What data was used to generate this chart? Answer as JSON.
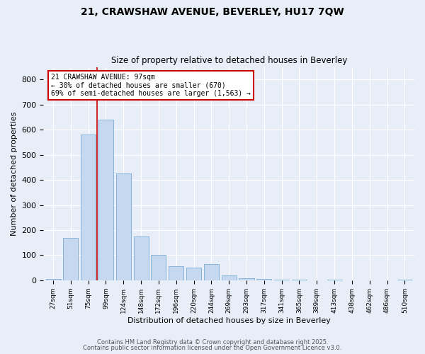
{
  "title1": "21, CRAWSHAW AVENUE, BEVERLEY, HU17 7QW",
  "title2": "Size of property relative to detached houses in Beverley",
  "xlabel": "Distribution of detached houses by size in Beverley",
  "ylabel": "Number of detached properties",
  "bar_color": "#c5d8f0",
  "bar_edge_color": "#7aadd4",
  "background_color": "#e8eef8",
  "grid_color": "#ffffff",
  "categories": [
    "27sqm",
    "51sqm",
    "75sqm",
    "99sqm",
    "124sqm",
    "148sqm",
    "172sqm",
    "196sqm",
    "220sqm",
    "244sqm",
    "269sqm",
    "293sqm",
    "317sqm",
    "341sqm",
    "365sqm",
    "389sqm",
    "413sqm",
    "438sqm",
    "462sqm",
    "486sqm",
    "510sqm"
  ],
  "values": [
    5,
    170,
    580,
    640,
    425,
    175,
    100,
    55,
    50,
    65,
    20,
    8,
    5,
    2,
    2,
    0,
    1,
    0,
    0,
    0,
    1
  ],
  "ylim": [
    0,
    850
  ],
  "yticks": [
    0,
    100,
    200,
    300,
    400,
    500,
    600,
    700,
    800
  ],
  "annotation_title": "21 CRAWSHAW AVENUE: 97sqm",
  "annotation_line1": "← 30% of detached houses are smaller (670)",
  "annotation_line2": "69% of semi-detached houses are larger (1,563) →",
  "footer1": "Contains HM Land Registry data © Crown copyright and database right 2025.",
  "footer2": "Contains public sector information licensed under the Open Government Licence v3.0.",
  "annotation_box_color": "#ffffff",
  "annotation_border_color": "#cc0000",
  "red_line_color": "#cc0000"
}
